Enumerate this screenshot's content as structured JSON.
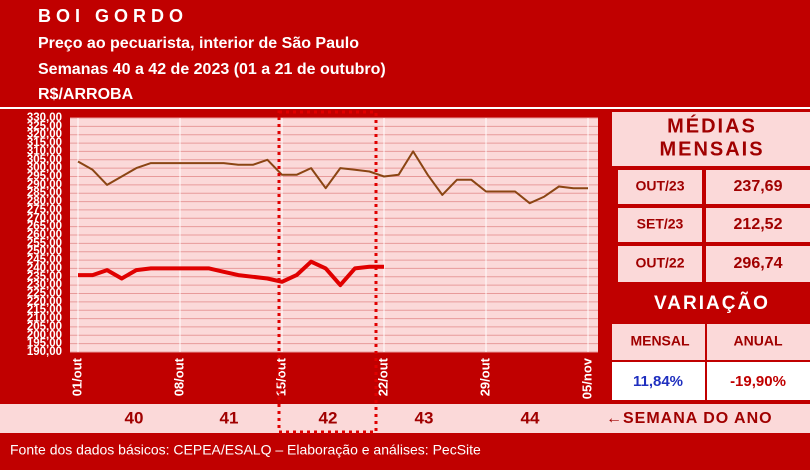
{
  "header": {
    "title": "BOI GORDO",
    "subtitle": "Preço ao pecuarista, interior de São Paulo",
    "period": "Semanas 40 a 42 de 2023 (01 a 21 de outubro)",
    "unit": "R$/ARROBA"
  },
  "chart_data": {
    "type": "line",
    "x": [
      0,
      1,
      2,
      3,
      4,
      5,
      6,
      7,
      8,
      9,
      10,
      11,
      12,
      13,
      14,
      15,
      16,
      17,
      18,
      19,
      20,
      21,
      22,
      23,
      24,
      25,
      26,
      27,
      28,
      29,
      30,
      31,
      32,
      33,
      34,
      35
    ],
    "xlim": [
      0,
      35
    ],
    "xticks": [
      {
        "value": 0,
        "label": "01/out"
      },
      {
        "value": 7,
        "label": "08/out"
      },
      {
        "value": 14,
        "label": "15/out"
      },
      {
        "value": 21,
        "label": "22/out"
      },
      {
        "value": 28,
        "label": "29/out"
      },
      {
        "value": 35,
        "label": "05/nov"
      }
    ],
    "ylim": [
      190,
      330
    ],
    "yticks": [
      {
        "value": 190,
        "label": "190,00"
      },
      {
        "value": 195,
        "label": "195,00"
      },
      {
        "value": 200,
        "label": "200,00"
      },
      {
        "value": 205,
        "label": "205,00"
      },
      {
        "value": 210,
        "label": "210,00"
      },
      {
        "value": 215,
        "label": "215,00"
      },
      {
        "value": 220,
        "label": "220,00"
      },
      {
        "value": 225,
        "label": "225,00"
      },
      {
        "value": 230,
        "label": "230,00"
      },
      {
        "value": 235,
        "label": "235,00"
      },
      {
        "value": 240,
        "label": "240,00"
      },
      {
        "value": 245,
        "label": "245,00"
      },
      {
        "value": 250,
        "label": "250,00"
      },
      {
        "value": 255,
        "label": "255,00"
      },
      {
        "value": 260,
        "label": "260,00"
      },
      {
        "value": 265,
        "label": "265,00"
      },
      {
        "value": 270,
        "label": "270,00"
      },
      {
        "value": 275,
        "label": "275,00"
      },
      {
        "value": 280,
        "label": "280,00"
      },
      {
        "value": 285,
        "label": "285,00"
      },
      {
        "value": 290,
        "label": "290,00"
      },
      {
        "value": 295,
        "label": "295,00"
      },
      {
        "value": 300,
        "label": "300,00"
      },
      {
        "value": 305,
        "label": "305,00"
      },
      {
        "value": 310,
        "label": "310,00"
      },
      {
        "value": 315,
        "label": "315,00"
      },
      {
        "value": 320,
        "label": "320,00"
      },
      {
        "value": 325,
        "label": "325,00"
      },
      {
        "value": 330,
        "label": "330,00"
      }
    ],
    "grid": true,
    "series": [
      {
        "color": "#8b4513",
        "values": [
          304,
          299,
          290,
          295,
          300,
          303,
          303,
          303,
          303,
          303,
          303,
          302,
          302,
          305,
          296,
          296,
          300,
          288,
          300,
          299,
          298,
          295,
          296,
          310,
          296,
          284,
          293,
          293,
          286,
          286,
          286,
          279,
          283,
          289,
          288,
          288
        ]
      },
      {
        "color": "#e00000",
        "values": [
          236,
          236,
          239,
          234,
          239,
          240,
          240,
          240,
          240,
          240,
          238,
          236,
          235,
          234,
          232,
          236,
          244,
          240,
          230,
          240,
          241,
          241,
          null,
          null,
          null,
          null,
          null,
          null,
          null,
          null,
          null,
          null,
          null,
          null,
          null,
          null
        ]
      }
    ]
  },
  "weeks": {
    "labels": [
      "40",
      "41",
      "42",
      "43",
      "44"
    ],
    "caption": "←SEMANA DO ANO"
  },
  "panel": {
    "title": [
      "MÉDIAS",
      "MENSAIS"
    ],
    "rows": [
      [
        "OUT/23",
        "237,69"
      ],
      [
        "SET/23",
        "212,52"
      ],
      [
        "OUT/22",
        "296,74"
      ]
    ],
    "variation": "VARIAÇÃO",
    "columns": [
      "MENSAL",
      "ANUAL"
    ],
    "changes": [
      "11,84%",
      "-19,90%"
    ]
  },
  "footer": "Fonte dos dados básicos: CEPEA/ESALQ – Elaboração e análises: PecSite"
}
